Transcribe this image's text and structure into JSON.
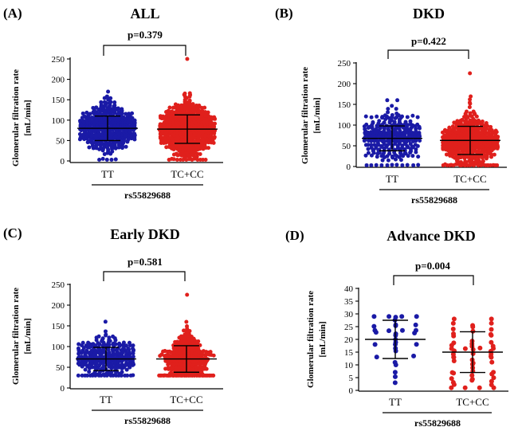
{
  "figure": {
    "ylabel_line1": "Glomerular filtration rate",
    "ylabel_line2": "[mL/min]",
    "xlabel": "rs55829688",
    "colors": {
      "TT": "#1a1aa6",
      "TC+CC": "#e0201c",
      "axis": "#000000"
    }
  },
  "chart_data": [
    {
      "type": "scatter",
      "panel": "(A)",
      "title": "ALL",
      "p_value": "p=0.379",
      "xlabel": "rs55829688",
      "ylabel": "Glomerular filtration rate [mL/min]",
      "ylim": [
        0,
        250
      ],
      "yticks": [
        0,
        50,
        100,
        150,
        200,
        250
      ],
      "categories": [
        "TT",
        "TC+CC"
      ],
      "series": [
        {
          "name": "TT",
          "n": 420,
          "min": 3,
          "max": 170,
          "mean": 80,
          "sd": 30
        },
        {
          "name": "TC+CC",
          "n": 560,
          "min": 3,
          "max": 250,
          "mean": 78,
          "sd": 35
        }
      ]
    },
    {
      "type": "scatter",
      "panel": "(B)",
      "title": "DKD",
      "p_value": "p=0.422",
      "xlabel": "rs55829688",
      "ylabel": "Glomerular filtration rate [mL/min]",
      "ylim": [
        0,
        250
      ],
      "yticks": [
        0,
        50,
        100,
        150,
        200,
        250
      ],
      "categories": [
        "TT",
        "TC+CC"
      ],
      "series": [
        {
          "name": "TT",
          "n": 300,
          "min": 3,
          "max": 160,
          "mean": 68,
          "sd": 30
        },
        {
          "name": "TC+CC",
          "n": 420,
          "min": 3,
          "max": 225,
          "mean": 63,
          "sd": 34
        }
      ]
    },
    {
      "type": "scatter",
      "panel": "(C)",
      "title": "Early DKD",
      "p_value": "p=0.581",
      "xlabel": "rs55829688",
      "ylabel": "Glomerular filtration rate [mL/min]",
      "ylim": [
        0,
        250
      ],
      "yticks": [
        0,
        50,
        100,
        150,
        200,
        250
      ],
      "categories": [
        "TT",
        "TC+CC"
      ],
      "series": [
        {
          "name": "TT",
          "n": 280,
          "min": 30,
          "max": 160,
          "mean": 70,
          "sd": 28
        },
        {
          "name": "TC+CC",
          "n": 380,
          "min": 30,
          "max": 225,
          "mean": 70,
          "sd": 32
        }
      ]
    },
    {
      "type": "scatter",
      "panel": "(D)",
      "title": "Advance DKD",
      "p_value": "p=0.004",
      "xlabel": "rs55829688",
      "ylabel": "Glomerular filtration rate [mL/min]",
      "ylim": [
        0,
        40
      ],
      "yticks": [
        0,
        5,
        10,
        15,
        20,
        25,
        30,
        35,
        40
      ],
      "categories": [
        "TT",
        "TC+CC"
      ],
      "series": [
        {
          "name": "TT",
          "n": 32,
          "min": 3,
          "max": 29,
          "mean": 20,
          "sd": 7.5
        },
        {
          "name": "TC+CC",
          "n": 58,
          "min": 1,
          "max": 28,
          "mean": 15,
          "sd": 8
        }
      ]
    }
  ]
}
